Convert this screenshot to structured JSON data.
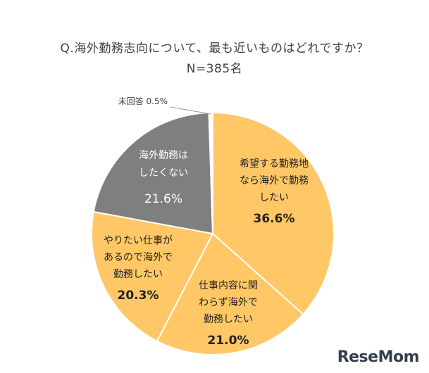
{
  "title": "Q.海外勤務志向について、最も近いものはどれですか？",
  "subtitle": "N=385名",
  "watermark": "ReseMom",
  "colors": {
    "highlight": "#FFC766",
    "gray": "#7F7F7F",
    "border": "#FFFFFF",
    "text_dark": "#222222",
    "text_light": "#FFFFFF",
    "leader": "#999999"
  },
  "chart_data": {
    "type": "pie",
    "start": "12 o'clock",
    "direction": "clockwise",
    "legend": "none",
    "slices": [
      {
        "label_lines": [
          "希望する勤務地",
          "なら海外で勤務",
          "したい"
        ],
        "value": 36.6,
        "value_label": "36.6%",
        "color": "#FFC766",
        "label_style": "dark"
      },
      {
        "label_lines": [
          "仕事内容に関",
          "わらず海外で",
          "勤務したい"
        ],
        "value": 21.0,
        "value_label": "21.0%",
        "color": "#FFC766",
        "label_style": "dark"
      },
      {
        "label_lines": [
          "やりたい仕事が",
          "あるので海外で",
          "勤務したい"
        ],
        "value": 20.3,
        "value_label": "20.3%",
        "color": "#FFC766",
        "label_style": "dark"
      },
      {
        "label_lines": [
          "海外勤務は",
          "したくない"
        ],
        "value": 21.6,
        "value_label": "21.6%",
        "color": "#7F7F7F",
        "label_style": "light"
      },
      {
        "label_lines": [
          "未回答"
        ],
        "value": 0.5,
        "value_label": "0.5%",
        "color": "#FFFFFF",
        "label_style": "outside"
      }
    ]
  }
}
